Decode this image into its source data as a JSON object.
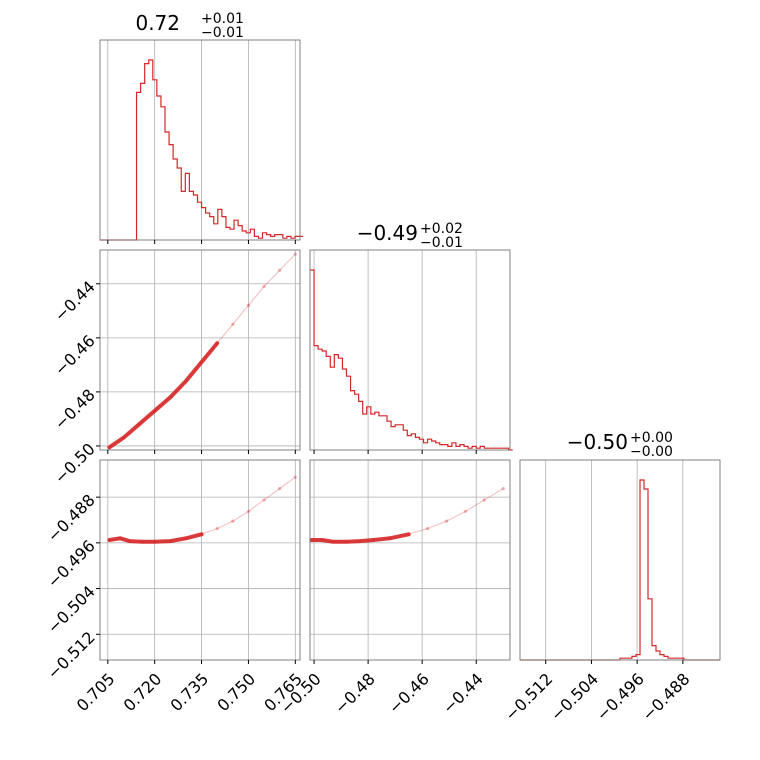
{
  "titles": {
    "p0": {
      "main": "0.72",
      "sup": "+0.01",
      "sub": "−0.01"
    },
    "p1": {
      "main": "−0.49",
      "sup": "+0.02",
      "sub": "−0.01"
    },
    "p2": {
      "main": "−0.50",
      "sup": "+0.00",
      "sub": "−0.00"
    }
  },
  "colors": {
    "series": "#d62728",
    "grid": "#b0b0b0",
    "frame": "#808080"
  },
  "chart_data": {
    "type": "corner",
    "grid": true,
    "params": [
      {
        "range": [
          0.7025,
          0.7665
        ],
        "ticks": [
          0.705,
          0.72,
          0.735,
          0.75,
          0.765
        ],
        "tick_labels": [
          "0.705",
          "0.720",
          "0.735",
          "0.750",
          "0.765"
        ]
      },
      {
        "range": [
          -0.5015,
          -0.4275
        ],
        "ticks": [
          -0.5,
          -0.48,
          -0.46,
          -0.44
        ],
        "tick_labels": [
          "−0.50",
          "−0.48",
          "−0.46",
          "−0.44"
        ]
      },
      {
        "range": [
          -0.5165,
          -0.4815
        ],
        "ticks": [
          -0.512,
          -0.504,
          -0.496,
          -0.488
        ],
        "tick_labels": [
          "−0.512",
          "−0.504",
          "−0.496",
          "−0.488"
        ]
      }
    ],
    "hist_0": {
      "bins": [
        0.7025,
        0.7038,
        0.7051,
        0.7064,
        0.7077,
        0.709,
        0.7103,
        0.7116,
        0.7129,
        0.7142,
        0.7155,
        0.7168,
        0.7181,
        0.7194,
        0.7207,
        0.722,
        0.7233,
        0.7246,
        0.7259,
        0.7272,
        0.7285,
        0.7298,
        0.7311,
        0.7324,
        0.7337,
        0.735,
        0.7363,
        0.7376,
        0.7389,
        0.7402,
        0.7415,
        0.7428,
        0.7441,
        0.7454,
        0.7467,
        0.748,
        0.7493,
        0.7506,
        0.7519,
        0.7532,
        0.7545,
        0.7558,
        0.7571,
        0.7584,
        0.7597,
        0.761,
        0.7623,
        0.7636,
        0.7649,
        0.7662
      ],
      "values": [
        0.0,
        0.0,
        0.0,
        0.0,
        0.0,
        0.0,
        0.0,
        0.0,
        0.0,
        0.82,
        0.87,
        0.98,
        1.0,
        0.89,
        0.8,
        0.74,
        0.6,
        0.53,
        0.45,
        0.4,
        0.27,
        0.37,
        0.27,
        0.25,
        0.21,
        0.18,
        0.15,
        0.13,
        0.09,
        0.17,
        0.13,
        0.07,
        0.06,
        0.11,
        0.08,
        0.05,
        0.04,
        0.06,
        0.02,
        0.01,
        0.04,
        0.03,
        0.02,
        0.03,
        0.03,
        0.01,
        0.02,
        0.01,
        0.02,
        0.02
      ]
    },
    "hist_1": {
      "bins": [
        -0.5015,
        -0.5,
        -0.4985,
        -0.497,
        -0.4955,
        -0.494,
        -0.4925,
        -0.491,
        -0.4895,
        -0.488,
        -0.4865,
        -0.485,
        -0.4835,
        -0.482,
        -0.4805,
        -0.479,
        -0.4775,
        -0.476,
        -0.4745,
        -0.473,
        -0.4715,
        -0.47,
        -0.4685,
        -0.467,
        -0.4655,
        -0.464,
        -0.4625,
        -0.461,
        -0.4595,
        -0.458,
        -0.4565,
        -0.455,
        -0.4535,
        -0.452,
        -0.4505,
        -0.449,
        -0.4475,
        -0.446,
        -0.4445,
        -0.443,
        -0.4415,
        -0.44,
        -0.4385,
        -0.437,
        -0.4355,
        -0.434,
        -0.4325,
        -0.431,
        -0.4295,
        -0.428
      ],
      "values": [
        1.0,
        0.58,
        0.56,
        0.55,
        0.52,
        0.46,
        0.53,
        0.51,
        0.45,
        0.41,
        0.33,
        0.31,
        0.27,
        0.2,
        0.24,
        0.2,
        0.21,
        0.19,
        0.19,
        0.16,
        0.13,
        0.14,
        0.14,
        0.11,
        0.08,
        0.09,
        0.07,
        0.06,
        0.04,
        0.06,
        0.05,
        0.04,
        0.03,
        0.03,
        0.02,
        0.04,
        0.02,
        0.03,
        0.02,
        0.01,
        0.02,
        0.01,
        0.02,
        0.01,
        0.01,
        0.01,
        0.01,
        0.01,
        0.01,
        0.0
      ]
    },
    "hist_2": {
      "bins": [
        -0.5165,
        -0.5158,
        -0.5151,
        -0.5144,
        -0.5137,
        -0.513,
        -0.5123,
        -0.5116,
        -0.5109,
        -0.5102,
        -0.5095,
        -0.5088,
        -0.5081,
        -0.5074,
        -0.5067,
        -0.506,
        -0.5053,
        -0.5046,
        -0.5039,
        -0.5032,
        -0.5025,
        -0.5018,
        -0.5011,
        -0.5004,
        -0.4997,
        -0.499,
        -0.4983,
        -0.4976,
        -0.4969,
        -0.4962,
        -0.4955,
        -0.4948,
        -0.4941,
        -0.4934,
        -0.4927,
        -0.492,
        -0.4913,
        -0.4906,
        -0.4899,
        -0.4892,
        -0.4885,
        -0.4878,
        -0.4871,
        -0.4864,
        -0.4857,
        -0.485,
        -0.4843,
        -0.4836,
        -0.4829,
        -0.4822
      ],
      "values": [
        0.0,
        0.0,
        0.0,
        0.0,
        0.0,
        0.0,
        0.0,
        0.0,
        0.0,
        0.0,
        0.0,
        0.0,
        0.0,
        0.0,
        0.0,
        0.0,
        0.0,
        0.0,
        0.0,
        0.0,
        0.0,
        0.0,
        0.0,
        0.0,
        0.0,
        0.01,
        0.01,
        0.01,
        0.02,
        0.03,
        1.0,
        0.95,
        0.34,
        0.08,
        0.05,
        0.03,
        0.02,
        0.01,
        0.01,
        0.01,
        0.01,
        0.0,
        0.0,
        0.0,
        0.0,
        0.0,
        0.0,
        0.0,
        0.0,
        0.0
      ]
    },
    "scatter_1_0": {
      "line": [
        [
          0.7055,
          -0.5005
        ],
        [
          0.71,
          -0.497
        ],
        [
          0.715,
          -0.492
        ],
        [
          0.72,
          -0.487
        ],
        [
          0.725,
          -0.482
        ],
        [
          0.73,
          -0.476
        ],
        [
          0.735,
          -0.469
        ],
        [
          0.74,
          -0.462
        ],
        [
          0.745,
          -0.455
        ],
        [
          0.75,
          -0.448
        ],
        [
          0.755,
          -0.441
        ],
        [
          0.76,
          -0.435
        ],
        [
          0.765,
          -0.429
        ]
      ]
    },
    "scatter_2_0": {
      "line": [
        [
          0.7055,
          -0.4955
        ],
        [
          0.709,
          -0.4952
        ],
        [
          0.712,
          -0.4957
        ],
        [
          0.716,
          -0.4958
        ],
        [
          0.72,
          -0.4958
        ],
        [
          0.725,
          -0.4957
        ],
        [
          0.73,
          -0.4952
        ],
        [
          0.735,
          -0.4945
        ],
        [
          0.74,
          -0.4935
        ],
        [
          0.745,
          -0.4922
        ],
        [
          0.75,
          -0.4905
        ],
        [
          0.755,
          -0.4885
        ],
        [
          0.76,
          -0.4865
        ],
        [
          0.765,
          -0.4845
        ]
      ]
    },
    "scatter_2_1": {
      "line": [
        [
          -0.501,
          -0.4955
        ],
        [
          -0.497,
          -0.4955
        ],
        [
          -0.493,
          -0.4958
        ],
        [
          -0.488,
          -0.4958
        ],
        [
          -0.483,
          -0.4957
        ],
        [
          -0.478,
          -0.4955
        ],
        [
          -0.472,
          -0.4952
        ],
        [
          -0.465,
          -0.4945
        ],
        [
          -0.458,
          -0.4935
        ],
        [
          -0.451,
          -0.4922
        ],
        [
          -0.444,
          -0.4905
        ],
        [
          -0.437,
          -0.4885
        ],
        [
          -0.43,
          -0.4865
        ]
      ]
    }
  }
}
